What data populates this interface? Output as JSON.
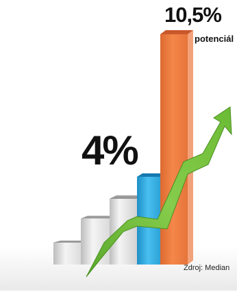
{
  "chart_data": {
    "type": "bar",
    "categories": [
      "",
      "",
      "",
      "",
      ""
    ],
    "values": [
      1.0,
      2.1,
      3.0,
      4,
      10.5
    ],
    "bar_colors": [
      "#d8d8d8",
      "#d8d8d8",
      "#d8d8d8",
      "#2aa8d8",
      "#ee7b3e"
    ],
    "data_labels": {
      "current": "4%",
      "potential_value": "10,5%",
      "potential_text": "potenciál"
    },
    "trend_arrow_color": "#6fbe3a",
    "source": "Zdroj: Median",
    "title": "",
    "xlabel": "",
    "ylabel": "",
    "ylim": [
      0,
      10.5
    ],
    "grid": false
  }
}
